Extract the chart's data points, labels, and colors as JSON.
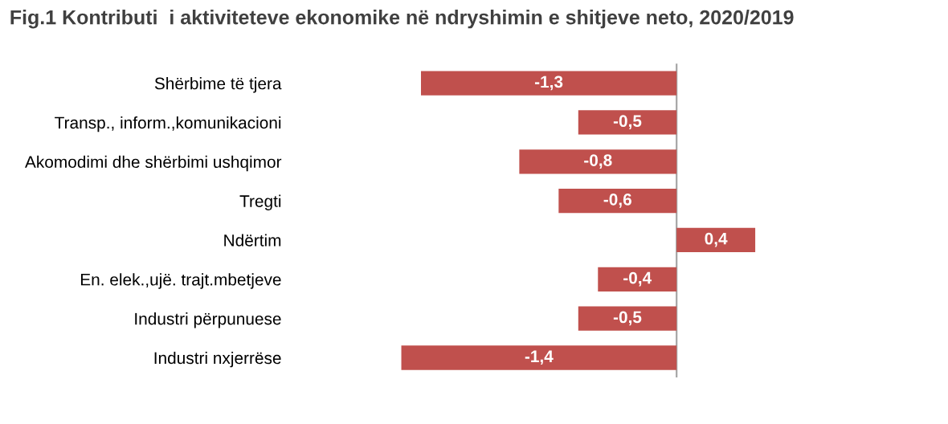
{
  "chart_data": {
    "type": "bar",
    "orientation": "horizontal",
    "title": "Fig.1 Kontributi  i aktiviteteve ekonomike në ndryshimin e shitjeve neto, 2020/2019",
    "categories": [
      "Shërbime të tjera",
      "Transp., inform.,komunikacioni",
      "Akomodimi dhe shërbimi ushqimor",
      "Tregti",
      "Ndërtim",
      "En. elek.,ujë. trajt.mbetjeve",
      "Industri përpunuese",
      "Industri nxjerrëse"
    ],
    "values": [
      -1.3,
      -0.5,
      -0.8,
      -0.6,
      0.4,
      -0.4,
      -0.5,
      -1.4
    ],
    "value_labels": [
      "-1,3",
      "-0,5",
      "-0,8",
      "-0,6",
      "0,4",
      "-0,4",
      "-0,5",
      "-1,4"
    ],
    "color": "#c0504d",
    "tick_labels": "y",
    "grid": false
  }
}
